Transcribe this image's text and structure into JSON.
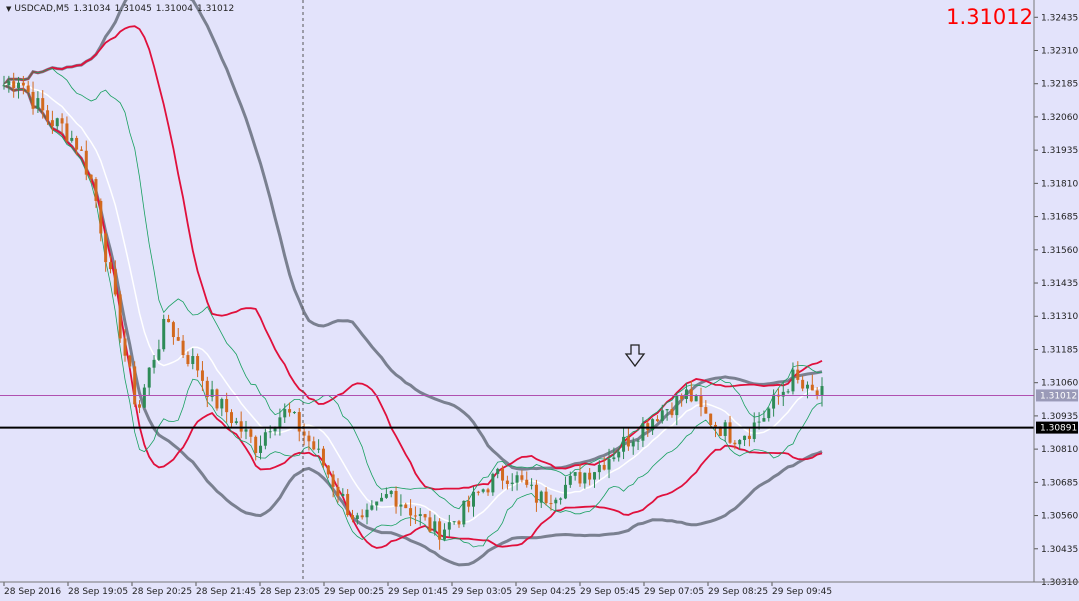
{
  "window": {
    "symbol": "USDCAD,M5",
    "ohlc": [
      "1.31034",
      "1.31045",
      "1.31004",
      "1.31012"
    ],
    "big_price": "1.31012"
  },
  "colors": {
    "background": "#e3e3fb",
    "bull_candle": "#2e8b57",
    "bear_candle": "#d2691e",
    "band_red": "#e0103c",
    "band_gray": "#7a8090",
    "band_green": "#18a060",
    "ma_white": "#ffffff",
    "support_line": "#000000",
    "bid_line": "#b050b0",
    "big_price": "#ff0000"
  },
  "chart_data": {
    "type": "candlestick",
    "symbol": "USDCAD",
    "timeframe": "M5",
    "y_ticks": [
      "1.32435",
      "1.32310",
      "1.32185",
      "1.32060",
      "1.31935",
      "1.31810",
      "1.31685",
      "1.31560",
      "1.31435",
      "1.31310",
      "1.31185",
      "1.31060",
      "1.30935",
      "1.30810",
      "1.30685",
      "1.30560",
      "1.30435",
      "1.30310"
    ],
    "y_range": [
      1.3031,
      1.325
    ],
    "x_labels": [
      "28 Sep 2016",
      "28 Sep 19:05",
      "28 Sep 20:25",
      "28 Sep 21:45",
      "28 Sep 23:05",
      "29 Sep 00:25",
      "29 Sep 01:45",
      "29 Sep 03:05",
      "29 Sep 04:25",
      "29 Sep 05:45",
      "29 Sep 07:05",
      "29 Sep 08:25",
      "29 Sep 09:45"
    ],
    "current_price": "1.31012",
    "horizontal_line": "1.30891",
    "close_path": [
      1.3218,
      1.3221,
      1.3212,
      1.3205,
      1.3202,
      1.3195,
      1.318,
      1.315,
      1.312,
      1.3095,
      1.3115,
      1.313,
      1.3118,
      1.3112,
      1.31,
      1.3095,
      1.3088,
      1.3082,
      1.3092,
      1.3095,
      1.3088,
      1.308,
      1.307,
      1.306,
      1.3052,
      1.3058,
      1.3065,
      1.306,
      1.3055,
      1.305,
      1.3053,
      1.3058,
      1.3065,
      1.307,
      1.3072,
      1.3067,
      1.3062,
      1.3065,
      1.3068,
      1.3072,
      1.3075,
      1.308,
      1.3085,
      1.309,
      1.3095,
      1.3098,
      1.3102,
      1.3094,
      1.309,
      1.3086,
      1.3088,
      1.3093,
      1.31,
      1.3108,
      1.3102,
      1.3101
    ],
    "annotation": "down-arrow"
  }
}
